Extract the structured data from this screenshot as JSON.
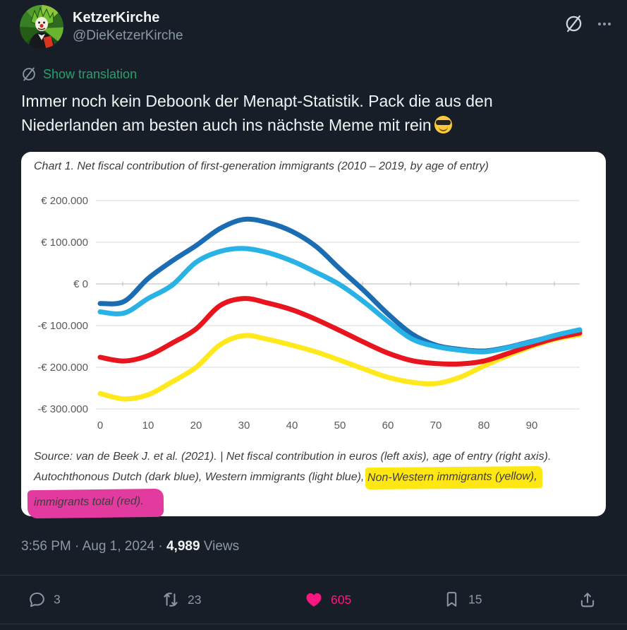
{
  "header": {
    "name": "KetzerKirche",
    "handle": "@DieKetzerKirche"
  },
  "translation": {
    "label": "Show translation"
  },
  "tweet": {
    "lines": [
      "Immer noch kein Deboonk der Menapt-Statistik. Pack die aus den",
      "Niederlanden am besten auch ins nächste Meme mit rein"
    ],
    "emoji": "😎"
  },
  "chart_data": {
    "type": "line",
    "title": "Chart 1. Net fiscal contribution of first-generation immigrants (2010 – 2019, by age of entry)",
    "xlabel": "age of entry",
    "ylabel": "net fiscal contribution (euros)",
    "x": [
      0,
      5,
      10,
      15,
      20,
      25,
      30,
      35,
      40,
      45,
      50,
      55,
      60,
      65,
      70,
      75,
      80,
      85,
      90,
      95,
      100
    ],
    "series": [
      {
        "name": "Autochthonous Dutch",
        "color": "#1b6db3",
        "values": [
          -47000,
          -42000,
          13000,
          55000,
          92000,
          133000,
          155000,
          147000,
          126000,
          90000,
          36000,
          -16000,
          -72000,
          -120000,
          -147000,
          -157000,
          -161000,
          -152000,
          -138000,
          -124000,
          -112000
        ]
      },
      {
        "name": "Non-Western immigrants",
        "color": "#ffe81c",
        "values": [
          -263000,
          -276000,
          -266000,
          -235000,
          -200000,
          -146000,
          -124000,
          -133000,
          -147000,
          -163000,
          -183000,
          -204000,
          -224000,
          -236000,
          -239000,
          -224000,
          -197000,
          -172000,
          -150000,
          -132000,
          -122000
        ]
      },
      {
        "name": "Immigrants total",
        "color": "#e8141e",
        "values": [
          -176000,
          -185000,
          -172000,
          -142000,
          -108000,
          -52000,
          -35000,
          -46000,
          -62000,
          -85000,
          -112000,
          -140000,
          -166000,
          -184000,
          -191000,
          -192000,
          -185000,
          -167000,
          -147000,
          -130000,
          -118000
        ]
      },
      {
        "name": "Western immigrants",
        "color": "#29b2e6",
        "values": [
          -67000,
          -70000,
          -35000,
          -3000,
          52000,
          78000,
          85000,
          75000,
          55000,
          28000,
          -2000,
          -43000,
          -90000,
          -132000,
          -150000,
          -159000,
          -163000,
          -153000,
          -139000,
          -123000,
          -110000
        ]
      }
    ],
    "ylim": [
      -300000,
      200000
    ],
    "yticks": [
      {
        "value": 200000,
        "label": "€ 200.000"
      },
      {
        "value": 100000,
        "label": "€ 100.000"
      },
      {
        "value": 0,
        "label": "€ 0"
      },
      {
        "value": -100000,
        "label": "-€ 100.000"
      },
      {
        "value": -200000,
        "label": "-€ 200.000"
      },
      {
        "value": -300000,
        "label": "-€ 300.000"
      }
    ],
    "xticks": [
      0,
      10,
      20,
      30,
      40,
      50,
      60,
      70,
      80,
      90
    ],
    "grid": true,
    "legend": "none",
    "footnote_lines": [
      [
        {
          "text": "Source: van de Beek J. et al. (2021). | Net fiscal contribution in euros (left axis), age of entry (right axis).",
          "hl": "none"
        }
      ],
      [
        {
          "text": "Autochthonous Dutch (dark blue), Western immigrants (light blue), ",
          "hl": "none"
        },
        {
          "text": "Non-Western immigrants (yellow),",
          "hl": "yellow"
        }
      ],
      [
        {
          "text": "immigrants total (red).",
          "hl": "pink"
        }
      ]
    ],
    "highlight_colors": {
      "yellow": "#ffe712",
      "pink": "#e23a9e"
    }
  },
  "meta": {
    "timestamp_prefix": "3:56 PM · Aug 1, 2024 · ",
    "views_count": "4,989",
    "views_label": "Views"
  },
  "actions": {
    "reply_count": "3",
    "repost_count": "23",
    "like_count": "605",
    "bookmark_count": "15"
  },
  "colors": {
    "background": "#171e27",
    "text_primary": "#f0f3f4",
    "text_secondary": "#8b98a5",
    "accent_green": "#27a06d",
    "like_pink": "#f91880",
    "card_background": "#ffffff"
  }
}
